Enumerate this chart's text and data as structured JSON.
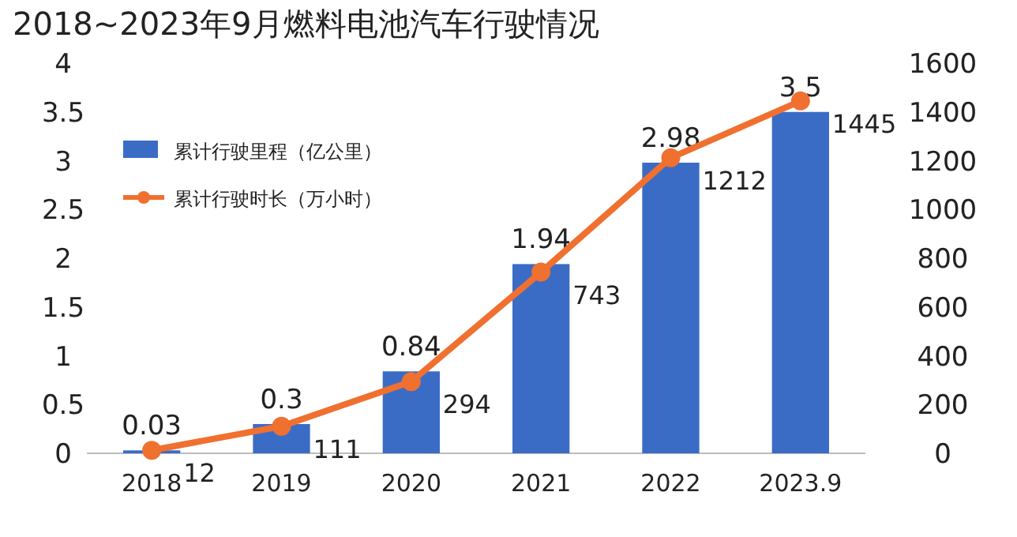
{
  "chart_data": {
    "type": "bar",
    "title": "2018~2023年9月燃料电池汽车行驶情况",
    "categories": [
      "2018",
      "2019",
      "2020",
      "2021",
      "2022",
      "2023.9"
    ],
    "series": [
      {
        "name": "累计行驶里程（亿公里）",
        "color": "#3a6cc6",
        "values": [
          0.03,
          0.3,
          0.84,
          1.94,
          2.98,
          3.5
        ]
      },
      {
        "name": "累计行驶时长（万小时）",
        "color": "#f07030",
        "type": "line",
        "axis": "y2",
        "marker": "circle",
        "values": [
          12,
          111,
          294,
          743,
          1212,
          1445
        ]
      }
    ],
    "ylim": [
      0,
      4
    ],
    "yticks": [
      0,
      0.5,
      1,
      1.5,
      2,
      2.5,
      3,
      3.5,
      4
    ],
    "y2lim": [
      0,
      1600
    ],
    "y2ticks": [
      0,
      200,
      400,
      600,
      800,
      1000,
      1200,
      1400,
      1600
    ],
    "data_labels": true,
    "grid": false,
    "legend": "top left"
  }
}
